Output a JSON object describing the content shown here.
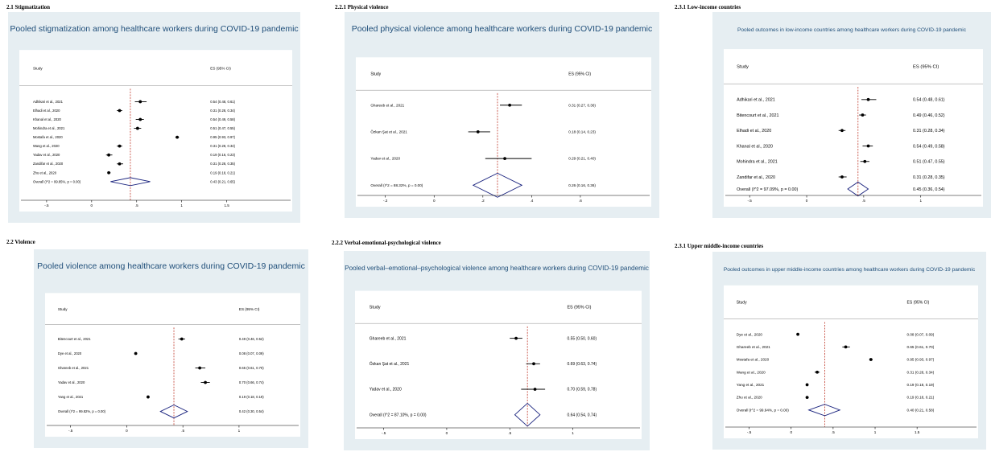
{
  "section_labels": [
    "2.1 Stigmatization",
    "2.2.1 Physical violence",
    "2.3.1 Low-income countries",
    "2.2 Violence",
    "2.2.2 Verbal-emotional-psychological violence",
    "2.3.1 Upper middle-income countries"
  ],
  "colors": {
    "panel_bg": "#e6eef2",
    "plot_bg": "#ffffff",
    "title": "#1f4e79",
    "point": "#000000",
    "diamond": "#1a237e",
    "reference_line": "#c0392b"
  },
  "chart_data": [
    {
      "type": "forest",
      "title": "Pooled stigmatization among healthcare workers during COVID-19 pandemic",
      "study_header": "Study",
      "es_header": "ES (95% CI)",
      "xlim": [
        -0.5,
        1.5
      ],
      "xticks": [
        -0.5,
        0,
        0.5,
        1,
        1.5
      ],
      "xtick_labels": [
        "-.5",
        "0",
        ".5",
        "1",
        "1.5"
      ],
      "studies": [
        {
          "label": "Adhikari et al., 2021",
          "es": 0.54,
          "lo": 0.48,
          "hi": 0.61,
          "text": "0.54 (0.48, 0.61)"
        },
        {
          "label": "Elhadi et al., 2020",
          "es": 0.31,
          "lo": 0.28,
          "hi": 0.34,
          "text": "0.31 (0.28, 0.34)"
        },
        {
          "label": "Khanal et al., 2020",
          "es": 0.54,
          "lo": 0.49,
          "hi": 0.58,
          "text": "0.54 (0.49, 0.58)"
        },
        {
          "label": "Mohindra et al., 2021",
          "es": 0.51,
          "lo": 0.47,
          "hi": 0.55,
          "text": "0.51 (0.47, 0.55)"
        },
        {
          "label": "Mostafa et al., 2020",
          "es": 0.95,
          "lo": 0.93,
          "hi": 0.97,
          "text": "0.95 (0.93, 0.97)"
        },
        {
          "label": "Wang et al., 2020",
          "es": 0.31,
          "lo": 0.28,
          "hi": 0.34,
          "text": "0.31 (0.28, 0.34)"
        },
        {
          "label": "Yadav et al., 2020",
          "es": 0.19,
          "lo": 0.16,
          "hi": 0.23,
          "text": "0.19 (0.16, 0.23)"
        },
        {
          "label": "Zandifar et al., 2020",
          "es": 0.31,
          "lo": 0.28,
          "hi": 0.35,
          "text": "0.31 (0.28, 0.35)"
        },
        {
          "label": "Zhu et al., 2020",
          "es": 0.19,
          "lo": 0.18,
          "hi": 0.21,
          "text": "0.19 (0.18, 0.21)"
        }
      ],
      "overall": {
        "label": "Overall  (I^2 = 99.85%, p = 0.00)",
        "es": 0.43,
        "lo": 0.21,
        "hi": 0.65,
        "text": "0.43 (0.21, 0.65)"
      }
    },
    {
      "type": "forest",
      "title": "Pooled physical violence among healthcare workers during COVID-19 pandemic",
      "study_header": "Study",
      "es_header": "ES (95% CI)",
      "xlim": [
        -0.2,
        0.6
      ],
      "xticks": [
        -0.2,
        0,
        0.2,
        0.4,
        0.6
      ],
      "xtick_labels": [
        "-.2",
        "0",
        ".2",
        ".4",
        ".6"
      ],
      "studies": [
        {
          "label": "Ghareeb et al., 2021",
          "es": 0.31,
          "lo": 0.27,
          "hi": 0.36,
          "text": "0.31 (0.27, 0.36)"
        },
        {
          "label": "Özkan Şat et al., 2021",
          "es": 0.18,
          "lo": 0.14,
          "hi": 0.23,
          "text": "0.18 (0.14, 0.23)"
        },
        {
          "label": "Yadav et al., 2020",
          "es": 0.29,
          "lo": 0.21,
          "hi": 0.4,
          "text": "0.29 (0.21, 0.40)"
        }
      ],
      "overall": {
        "label": "Overall  (I^2 = 88.32%, p = 0.00)",
        "es": 0.26,
        "lo": 0.16,
        "hi": 0.36,
        "text": "0.26 (0.16, 0.36)"
      }
    },
    {
      "type": "forest",
      "title": "Pooled outcomes in low-income countries among healthcare workers during COVID-19 pandemic",
      "study_header": "Study",
      "es_header": "ES (95% CI)",
      "xlim": [
        -0.5,
        1
      ],
      "xticks": [
        -0.5,
        0,
        0.5,
        1
      ],
      "xtick_labels": [
        "-.5",
        "0",
        ".5",
        "1"
      ],
      "studies": [
        {
          "label": "Adhikari et al., 2021",
          "es": 0.54,
          "lo": 0.48,
          "hi": 0.61,
          "text": "0.54 (0.48, 0.61)"
        },
        {
          "label": "Bitencourt et al., 2021",
          "es": 0.49,
          "lo": 0.46,
          "hi": 0.52,
          "text": "0.49 (0.46, 0.52)"
        },
        {
          "label": "Elhadi et al., 2020",
          "es": 0.31,
          "lo": 0.28,
          "hi": 0.34,
          "text": "0.31 (0.28, 0.34)"
        },
        {
          "label": "Khanal et al., 2020",
          "es": 0.54,
          "lo": 0.49,
          "hi": 0.58,
          "text": "0.54 (0.49, 0.58)"
        },
        {
          "label": "Mohindra et al., 2021",
          "es": 0.51,
          "lo": 0.47,
          "hi": 0.55,
          "text": "0.51 (0.47, 0.55)"
        },
        {
          "label": "Zandifar et al., 2020",
          "es": 0.31,
          "lo": 0.28,
          "hi": 0.35,
          "text": "0.31 (0.28, 0.35)"
        }
      ],
      "overall": {
        "label": "Overall  (I^2 = 97.09%, p = 0.00)",
        "es": 0.45,
        "lo": 0.36,
        "hi": 0.54,
        "text": "0.45 (0.36, 0.54)"
      }
    },
    {
      "type": "forest",
      "title": "Pooled violence among healthcare workers during COVID-19 pandemic",
      "study_header": "Study",
      "es_header": "ES (95% CI)",
      "xlim": [
        -0.5,
        1
      ],
      "xticks": [
        -0.5,
        0,
        0.5,
        1
      ],
      "xtick_labels": [
        "-.5",
        "0",
        ".5",
        "1"
      ],
      "studies": [
        {
          "label": "Bitencourt et al., 2021",
          "es": 0.49,
          "lo": 0.46,
          "hi": 0.52,
          "text": "0.49 (0.46, 0.52)"
        },
        {
          "label": "Dye et al., 2020",
          "es": 0.08,
          "lo": 0.07,
          "hi": 0.09,
          "text": "0.08 (0.07, 0.09)"
        },
        {
          "label": "Ghareeb et al., 2021",
          "es": 0.65,
          "lo": 0.61,
          "hi": 0.7,
          "text": "0.65 (0.61, 0.70)"
        },
        {
          "label": "Yadav et al., 2020",
          "es": 0.7,
          "lo": 0.66,
          "hi": 0.74,
          "text": "0.70 (0.66, 0.74)"
        },
        {
          "label": "Yang et al., 2021",
          "es": 0.19,
          "lo": 0.18,
          "hi": 0.19,
          "text": "0.19 (0.18, 0.19)"
        }
      ],
      "overall": {
        "label": "Overall  (I^2 = 99.82%, p = 0.00)",
        "es": 0.42,
        "lo": 0.3,
        "hi": 0.54,
        "text": "0.42 (0.30, 0.54)"
      }
    },
    {
      "type": "forest",
      "title": "Pooled verbal–emotional–psychological violence among healthcare workers during COVID-19 pandemic",
      "study_header": "Study",
      "es_header": "ES (95% CI)",
      "xlim": [
        -0.5,
        1
      ],
      "xticks": [
        -0.5,
        0,
        0.5,
        1
      ],
      "xtick_labels": [
        "-.5",
        "0",
        ".5",
        "1"
      ],
      "studies": [
        {
          "label": "Ghareeb et al., 2021",
          "es": 0.55,
          "lo": 0.5,
          "hi": 0.6,
          "text": "0.55 (0.50, 0.60)"
        },
        {
          "label": "Özkan Şat et al., 2021",
          "es": 0.69,
          "lo": 0.63,
          "hi": 0.74,
          "text": "0.69 (0.63, 0.74)"
        },
        {
          "label": "Yadav et al., 2020",
          "es": 0.7,
          "lo": 0.59,
          "hi": 0.78,
          "text": "0.70 (0.59, 0.78)"
        }
      ],
      "overall": {
        "label": "Overall  (I^2 = 87.10%, p = 0.00)",
        "es": 0.64,
        "lo": 0.54,
        "hi": 0.74,
        "text": "0.64 (0.54, 0.74)"
      }
    },
    {
      "type": "forest",
      "title": "Pooled outcomes in  upper middle-income countries among healthcare workers during COVID-19 pandemic",
      "study_header": "Study",
      "es_header": "ES (95% CI)",
      "xlim": [
        -0.5,
        1.5
      ],
      "xticks": [
        -0.5,
        0,
        0.5,
        1,
        1.5
      ],
      "xtick_labels": [
        "-.5",
        "0",
        ".5",
        "1",
        "1.5"
      ],
      "studies": [
        {
          "label": "Dye et al., 2020",
          "es": 0.08,
          "lo": 0.07,
          "hi": 0.09,
          "text": "0.08 (0.07, 0.09)"
        },
        {
          "label": "Ghareeb et al., 2021",
          "es": 0.65,
          "lo": 0.61,
          "hi": 0.7,
          "text": "0.65 (0.61, 0.70)"
        },
        {
          "label": "Mostafa et al., 2020",
          "es": 0.95,
          "lo": 0.93,
          "hi": 0.97,
          "text": "0.95 (0.93, 0.97)"
        },
        {
          "label": "Wang et al., 2020",
          "es": 0.31,
          "lo": 0.28,
          "hi": 0.34,
          "text": "0.31 (0.28, 0.34)"
        },
        {
          "label": "Yang et al., 2021",
          "es": 0.19,
          "lo": 0.18,
          "hi": 0.19,
          "text": "0.19 (0.18, 0.19)"
        },
        {
          "label": "Zhu et al., 2020",
          "es": 0.19,
          "lo": 0.18,
          "hi": 0.21,
          "text": "0.19 (0.18, 0.21)"
        }
      ],
      "overall": {
        "label": "Overall  (I^2 = 99.94%, p = 0.00)",
        "es": 0.4,
        "lo": 0.21,
        "hi": 0.58,
        "text": "0.40 (0.21, 0.58)"
      }
    }
  ]
}
